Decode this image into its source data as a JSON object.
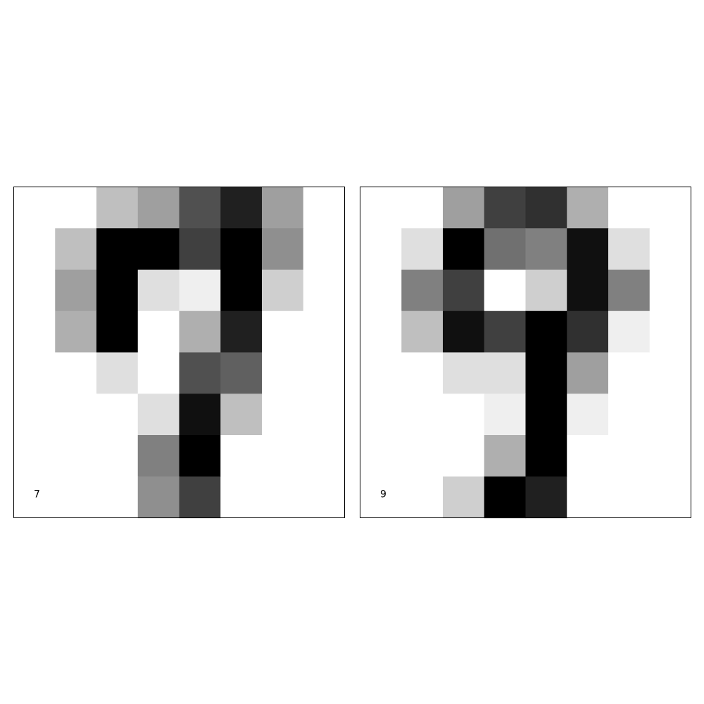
{
  "chart_data": [
    {
      "type": "heatmap",
      "label": "7",
      "colormap": "gray_r",
      "value_range": [
        0,
        16
      ],
      "rows": 8,
      "cols": 8,
      "values": [
        [
          0,
          0,
          4,
          6,
          11,
          14,
          6,
          0
        ],
        [
          0,
          4,
          16,
          16,
          12,
          16,
          7,
          0
        ],
        [
          0,
          6,
          16,
          2,
          1,
          16,
          3,
          0
        ],
        [
          0,
          5,
          16,
          0,
          5,
          14,
          0,
          0
        ],
        [
          0,
          0,
          2,
          0,
          11,
          10,
          0,
          0
        ],
        [
          0,
          0,
          0,
          2,
          15,
          4,
          0,
          0
        ],
        [
          0,
          0,
          0,
          8,
          16,
          0,
          0,
          0
        ],
        [
          0,
          0,
          0,
          7,
          12,
          0,
          0,
          0
        ]
      ]
    },
    {
      "type": "heatmap",
      "label": "9",
      "colormap": "gray_r",
      "value_range": [
        0,
        16
      ],
      "rows": 8,
      "cols": 8,
      "values": [
        [
          0,
          0,
          6,
          12,
          13,
          5,
          0,
          0
        ],
        [
          0,
          2,
          16,
          9,
          8,
          15,
          2,
          0
        ],
        [
          0,
          8,
          12,
          0,
          3,
          15,
          8,
          0
        ],
        [
          0,
          4,
          15,
          12,
          16,
          13,
          1,
          0
        ],
        [
          0,
          0,
          2,
          2,
          16,
          6,
          0,
          0
        ],
        [
          0,
          0,
          0,
          1,
          16,
          1,
          0,
          0
        ],
        [
          0,
          0,
          0,
          5,
          16,
          0,
          0,
          0
        ],
        [
          0,
          0,
          3,
          16,
          14,
          0,
          0,
          0
        ]
      ]
    }
  ]
}
